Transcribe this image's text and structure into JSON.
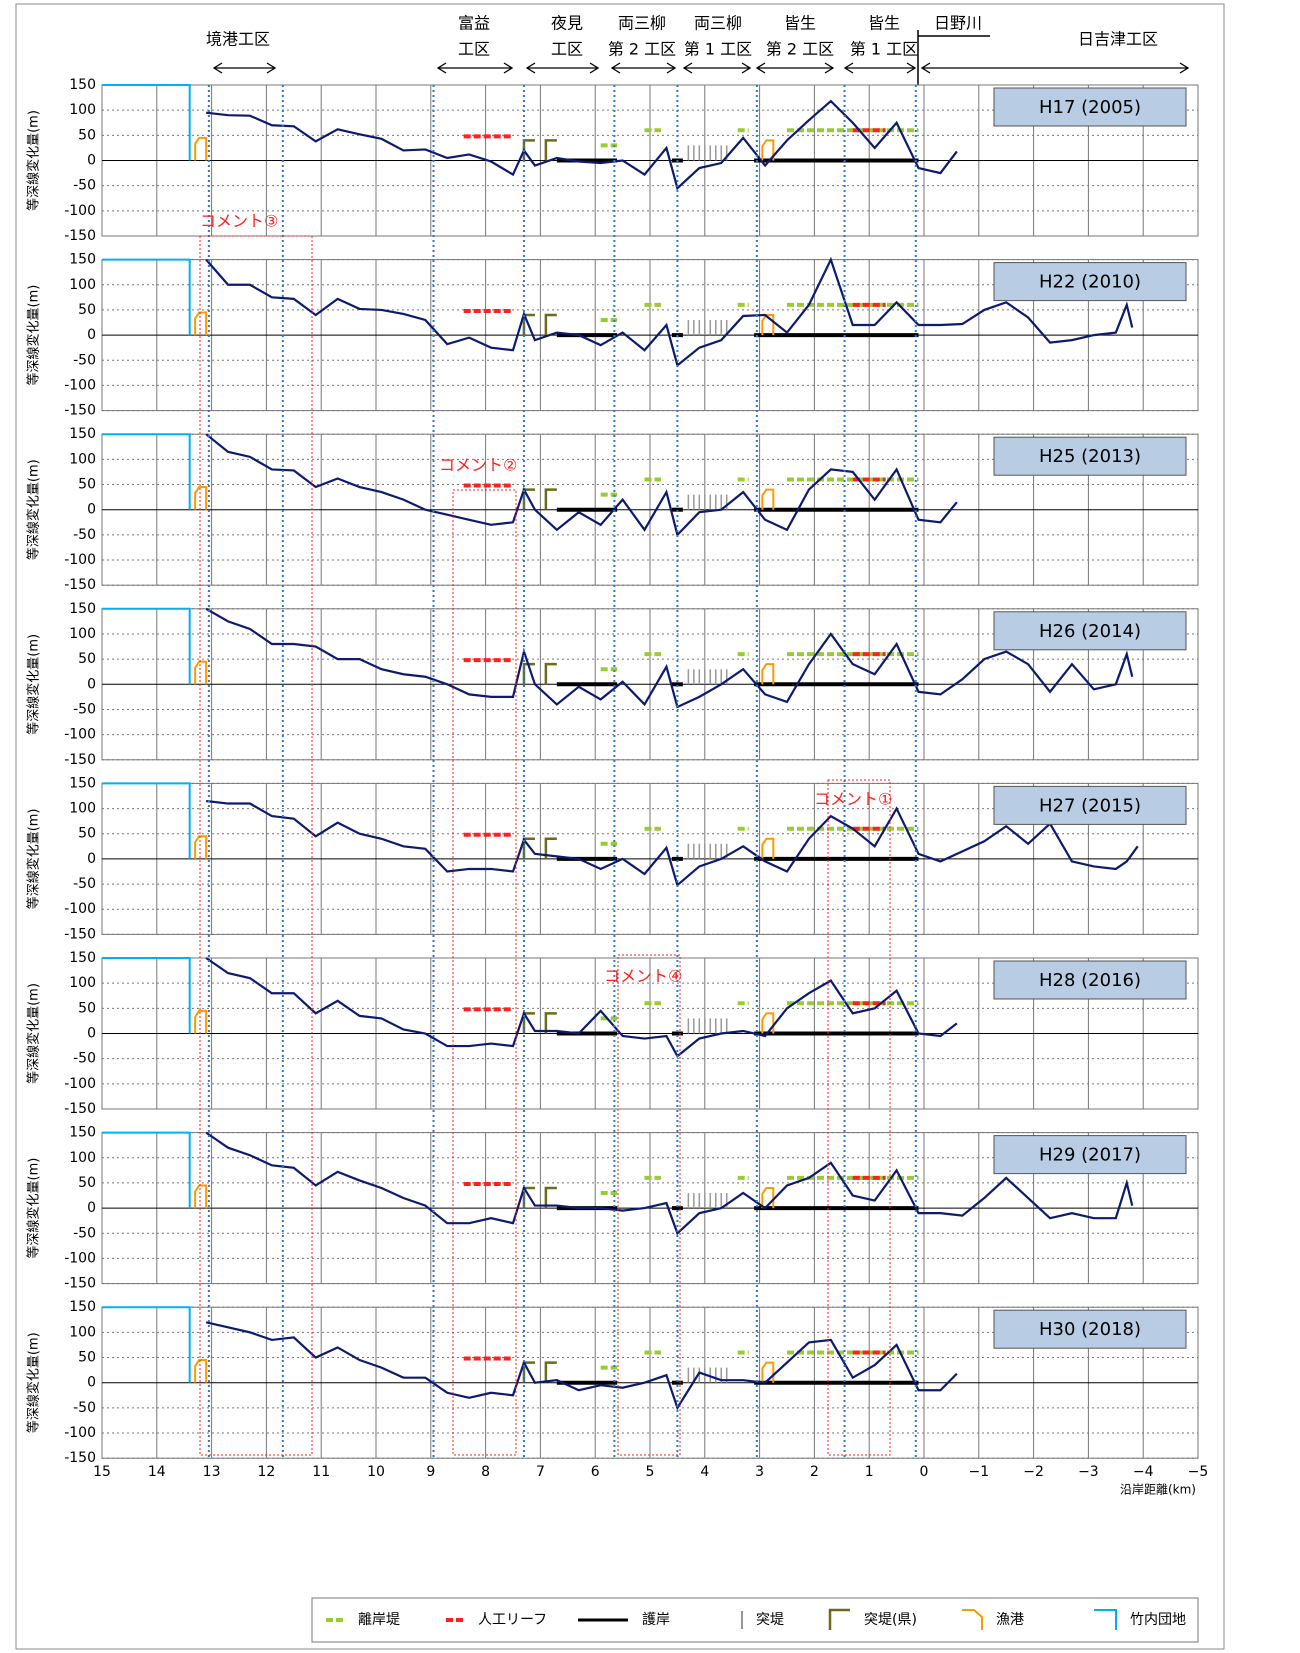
{
  "sections": [
    [
      "境港工区"
    ],
    [
      "富益",
      "工区"
    ],
    [
      "夜見",
      "工区"
    ],
    [
      "両三柳",
      "第 2 工区"
    ],
    [
      "両三柳",
      "第 1 工区"
    ],
    [
      "皆生",
      "第 2 工区"
    ],
    [
      "皆生",
      "第 1 工区"
    ],
    [
      "日野川"
    ],
    [
      "日吉津工区"
    ]
  ],
  "comments": [
    "コメント③",
    "コメント②",
    "コメント①",
    "コメント④"
  ],
  "x_label": "沿岸距離(km)",
  "section_boundaries": [
    13.05,
    11.7,
    8.95,
    7.3,
    5.65,
    4.5,
    3.05,
    1.45,
    0.15
  ],
  "legend": [
    {
      "name": "離岸堤",
      "color": "#99cc33",
      "shape": "dash",
      "items": [
        {
          "x": [
            5.9,
            5.6
          ],
          "y": 30
        },
        {
          "x": [
            5.1,
            4.8
          ],
          "y": 60
        },
        {
          "x": [
            3.4,
            3.2
          ],
          "y": 60
        },
        {
          "x": [
            2.5,
            0.1
          ],
          "y": 60
        }
      ]
    },
    {
      "name": "人工リーフ",
      "color": "#ff2020",
      "shape": "dash",
      "items": [
        {
          "x": [
            8.4,
            7.5
          ],
          "y": 48
        },
        {
          "x": [
            1.3,
            0.7
          ],
          "y": 60
        }
      ]
    },
    {
      "name": "護岸",
      "color": "#000000",
      "shape": "line",
      "items": [
        {
          "x": [
            6.7,
            5.6
          ],
          "y": 0
        },
        {
          "x": [
            4.6,
            4.4
          ],
          "y": 0
        },
        {
          "x": [
            3.1,
            0.1
          ],
          "y": 0
        }
      ]
    },
    {
      "name": "突堤",
      "color": "#999999",
      "shape": "ticks",
      "items": [
        {
          "x": [
            4.3,
            4.2,
            4.1,
            4.0,
            3.9,
            3.8,
            3.7,
            3.6
          ],
          "y": 30
        }
      ]
    },
    {
      "name": "突堤(県)",
      "color": "#6b6b1a",
      "shape": "bracket",
      "items": [
        {
          "x": [
            7.3,
            7.1
          ],
          "y": 40
        },
        {
          "x": [
            6.9,
            6.7
          ],
          "y": 40
        }
      ]
    },
    {
      "name": "漁港",
      "color": "#ff9900",
      "shape": "hook",
      "items": [
        {
          "x": [
            13.3,
            13.1
          ],
          "y": 45
        },
        {
          "x": [
            2.95,
            2.75
          ],
          "y": 40
        }
      ]
    },
    {
      "name": "竹内団地",
      "color": "#00b0f0",
      "shape": "frame",
      "items": [
        {
          "x": [
            15,
            13.4
          ],
          "y": 150
        }
      ]
    }
  ],
  "chart_data": [
    {
      "type": "line",
      "title": "H17 (2005)",
      "y_label": "等深線変化量(m)",
      "color": "#0d1a6e",
      "xlim": [
        15,
        -5
      ],
      "ylim": [
        -150,
        150
      ],
      "yticks": [
        150,
        100,
        50,
        0,
        -50,
        -100,
        -150
      ],
      "x": [
        13.1,
        12.7,
        12.3,
        11.9,
        11.5,
        11.1,
        10.7,
        10.3,
        9.9,
        9.5,
        9.1,
        8.7,
        8.3,
        7.9,
        7.5,
        7.3,
        7.1,
        6.7,
        6.3,
        5.9,
        5.5,
        5.1,
        4.7,
        4.5,
        4.1,
        3.7,
        3.3,
        2.9,
        2.5,
        2.1,
        1.7,
        1.3,
        0.9,
        0.5,
        0.1,
        -0.3,
        -0.6
      ],
      "values": [
        95,
        90,
        89,
        70,
        68,
        38,
        62,
        52,
        43,
        20,
        22,
        5,
        12,
        -2,
        -28,
        20,
        -10,
        5,
        -2,
        -5,
        0,
        -28,
        25,
        -55,
        -15,
        -5,
        45,
        -10,
        40,
        80,
        118,
        75,
        25,
        75,
        -15,
        -25,
        18
      ]
    },
    {
      "type": "line",
      "title": "H22 (2010)",
      "y_label": "等深線変化量(m)",
      "color": "#0d1a6e",
      "xlim": [
        15,
        -5
      ],
      "ylim": [
        -150,
        150
      ],
      "yticks": [
        150,
        100,
        50,
        0,
        -50,
        -100,
        -150
      ],
      "x": [
        13.1,
        12.7,
        12.3,
        11.9,
        11.5,
        11.1,
        10.7,
        10.3,
        9.9,
        9.5,
        9.1,
        8.7,
        8.3,
        7.9,
        7.5,
        7.3,
        7.1,
        6.7,
        6.3,
        5.9,
        5.5,
        5.1,
        4.7,
        4.5,
        4.1,
        3.7,
        3.3,
        2.9,
        2.5,
        2.1,
        1.7,
        1.3,
        0.9,
        0.5,
        0.1,
        -0.3,
        -0.7,
        -1.1,
        -1.5,
        -1.9,
        -2.3,
        -2.7,
        -3.1,
        -3.5,
        -3.7,
        -3.8
      ],
      "values": [
        150,
        100,
        100,
        75,
        72,
        40,
        72,
        52,
        50,
        42,
        30,
        -18,
        -5,
        -25,
        -30,
        42,
        -10,
        5,
        0,
        -20,
        5,
        -30,
        20,
        -60,
        -25,
        -10,
        38,
        40,
        5,
        60,
        150,
        20,
        20,
        65,
        20,
        20,
        22,
        50,
        65,
        35,
        -15,
        -10,
        0,
        5,
        60,
        15
      ]
    },
    {
      "type": "line",
      "title": "H25 (2013)",
      "y_label": "等深線変化量(m)",
      "color": "#0d1a6e",
      "xlim": [
        15,
        -5
      ],
      "ylim": [
        -150,
        150
      ],
      "yticks": [
        150,
        100,
        50,
        0,
        -50,
        -100,
        -150
      ],
      "x": [
        13.1,
        12.7,
        12.3,
        11.9,
        11.5,
        11.1,
        10.7,
        10.3,
        9.9,
        9.5,
        9.1,
        8.7,
        8.3,
        7.9,
        7.5,
        7.3,
        7.1,
        6.7,
        6.3,
        5.9,
        5.5,
        5.1,
        4.7,
        4.5,
        4.1,
        3.7,
        3.3,
        2.9,
        2.5,
        2.1,
        1.7,
        1.3,
        0.9,
        0.5,
        0.1,
        -0.3,
        -0.6
      ],
      "values": [
        150,
        115,
        105,
        80,
        78,
        45,
        62,
        45,
        35,
        20,
        0,
        -10,
        -20,
        -30,
        -25,
        40,
        0,
        -40,
        -5,
        -30,
        20,
        -40,
        35,
        -50,
        -5,
        0,
        35,
        -20,
        -40,
        40,
        80,
        75,
        20,
        80,
        -20,
        -25,
        15
      ]
    },
    {
      "type": "line",
      "title": "H26 (2014)",
      "y_label": "等深線変化量(m)",
      "color": "#0d1a6e",
      "xlim": [
        15,
        -5
      ],
      "ylim": [
        -150,
        150
      ],
      "yticks": [
        150,
        100,
        50,
        0,
        -50,
        -100,
        -150
      ],
      "x": [
        13.1,
        12.7,
        12.3,
        11.9,
        11.5,
        11.1,
        10.7,
        10.3,
        9.9,
        9.5,
        9.1,
        8.7,
        8.3,
        7.9,
        7.5,
        7.3,
        7.1,
        6.7,
        6.3,
        5.9,
        5.5,
        5.1,
        4.7,
        4.5,
        4.1,
        3.7,
        3.3,
        2.9,
        2.5,
        2.1,
        1.7,
        1.3,
        0.9,
        0.5,
        0.1,
        -0.3,
        -0.7,
        -1.1,
        -1.5,
        -1.9,
        -2.3,
        -2.7,
        -3.1,
        -3.5,
        -3.7,
        -3.8
      ],
      "values": [
        150,
        125,
        110,
        80,
        80,
        75,
        50,
        50,
        30,
        20,
        15,
        0,
        -20,
        -25,
        -25,
        65,
        0,
        -40,
        -5,
        -30,
        5,
        -40,
        35,
        -45,
        -25,
        0,
        30,
        -20,
        -35,
        40,
        100,
        40,
        20,
        80,
        -15,
        -20,
        10,
        50,
        65,
        40,
        -15,
        40,
        -10,
        0,
        60,
        15
      ]
    },
    {
      "type": "line",
      "title": "H27 (2015)",
      "y_label": "等深線変化量(m)",
      "color": "#0d1a6e",
      "xlim": [
        15,
        -5
      ],
      "ylim": [
        -150,
        150
      ],
      "yticks": [
        150,
        100,
        50,
        0,
        -50,
        -100,
        -150
      ],
      "x": [
        13.1,
        12.7,
        12.3,
        11.9,
        11.5,
        11.1,
        10.7,
        10.3,
        9.9,
        9.5,
        9.1,
        8.7,
        8.3,
        7.9,
        7.5,
        7.3,
        7.1,
        6.7,
        6.3,
        5.9,
        5.5,
        5.1,
        4.7,
        4.5,
        4.1,
        3.7,
        3.3,
        2.9,
        2.5,
        2.1,
        1.7,
        1.3,
        0.9,
        0.5,
        0.1,
        -0.3,
        -0.7,
        -1.1,
        -1.5,
        -1.9,
        -2.3,
        -2.7,
        -3.1,
        -3.5,
        -3.7,
        -3.9
      ],
      "values": [
        115,
        110,
        110,
        85,
        80,
        45,
        72,
        50,
        40,
        25,
        20,
        -25,
        -20,
        -20,
        -25,
        38,
        10,
        5,
        0,
        -20,
        0,
        -30,
        22,
        -52,
        -15,
        0,
        25,
        -5,
        -25,
        40,
        85,
        60,
        25,
        100,
        10,
        -5,
        15,
        35,
        65,
        30,
        70,
        -5,
        -15,
        -20,
        -5,
        25
      ]
    },
    {
      "type": "line",
      "title": "H28 (2016)",
      "y_label": "等深線変化量(m)",
      "color": "#0d1a6e",
      "xlim": [
        15,
        -5
      ],
      "ylim": [
        -150,
        150
      ],
      "yticks": [
        150,
        100,
        50,
        0,
        -50,
        -100,
        -150
      ],
      "x": [
        13.1,
        12.7,
        12.3,
        11.9,
        11.5,
        11.1,
        10.7,
        10.3,
        9.9,
        9.5,
        9.1,
        8.7,
        8.3,
        7.9,
        7.5,
        7.3,
        7.1,
        6.7,
        6.3,
        5.9,
        5.5,
        5.1,
        4.7,
        4.5,
        4.1,
        3.7,
        3.3,
        2.9,
        2.5,
        2.1,
        1.7,
        1.3,
        0.9,
        0.5,
        0.1,
        -0.3,
        -0.6
      ],
      "values": [
        150,
        120,
        110,
        80,
        80,
        40,
        65,
        35,
        30,
        8,
        0,
        -25,
        -25,
        -20,
        -25,
        40,
        5,
        5,
        0,
        45,
        -5,
        -10,
        -5,
        -45,
        -10,
        0,
        5,
        -5,
        50,
        80,
        105,
        40,
        50,
        85,
        0,
        -5,
        20
      ]
    },
    {
      "type": "line",
      "title": "H29 (2017)",
      "y_label": "等深線変化量(m)",
      "color": "#0d1a6e",
      "xlim": [
        15,
        -5
      ],
      "ylim": [
        -150,
        150
      ],
      "yticks": [
        150,
        100,
        50,
        0,
        -50,
        -100,
        -150
      ],
      "x": [
        13.1,
        12.7,
        12.3,
        11.9,
        11.5,
        11.1,
        10.7,
        10.3,
        9.9,
        9.5,
        9.1,
        8.7,
        8.3,
        7.9,
        7.5,
        7.3,
        7.1,
        6.7,
        6.3,
        5.9,
        5.5,
        5.1,
        4.7,
        4.5,
        4.1,
        3.7,
        3.3,
        2.9,
        2.5,
        2.1,
        1.7,
        1.3,
        0.9,
        0.5,
        0.1,
        -0.3,
        -0.7,
        -1.1,
        -1.5,
        -1.9,
        -2.3,
        -2.7,
        -3.1,
        -3.5,
        -3.7,
        -3.8
      ],
      "values": [
        150,
        120,
        105,
        85,
        80,
        45,
        72,
        55,
        40,
        20,
        5,
        -30,
        -30,
        -20,
        -30,
        40,
        5,
        5,
        0,
        0,
        -5,
        0,
        10,
        -50,
        -10,
        0,
        30,
        0,
        45,
        60,
        90,
        25,
        15,
        75,
        -10,
        -10,
        -15,
        20,
        60,
        20,
        -20,
        -10,
        -20,
        -20,
        50,
        5
      ]
    },
    {
      "type": "line",
      "title": "H30 (2018)",
      "y_label": "等深線変化量(m)",
      "color": "#0d1a6e",
      "xlim": [
        15,
        -5
      ],
      "ylim": [
        -150,
        150
      ],
      "yticks": [
        150,
        100,
        50,
        0,
        -50,
        -100,
        -150
      ],
      "xticks": [
        15,
        14,
        13,
        12,
        11,
        10,
        9,
        8,
        7,
        6,
        5,
        4,
        3,
        2,
        1,
        0,
        {
          "value": -1,
          "label": "−1"
        },
        {
          "value": -2,
          "label": "−2"
        },
        {
          "value": -3,
          "label": "−3"
        },
        {
          "value": -4,
          "label": "−4"
        },
        {
          "value": -5,
          "label": "−5"
        }
      ],
      "x": [
        13.1,
        12.7,
        12.3,
        11.9,
        11.5,
        11.1,
        10.7,
        10.3,
        9.9,
        9.5,
        9.1,
        8.7,
        8.3,
        7.9,
        7.5,
        7.3,
        7.1,
        6.7,
        6.3,
        5.9,
        5.5,
        5.1,
        4.7,
        4.5,
        4.1,
        3.7,
        3.3,
        2.9,
        2.5,
        2.1,
        1.7,
        1.3,
        0.9,
        0.5,
        0.1,
        -0.3,
        -0.6
      ],
      "values": [
        120,
        110,
        100,
        85,
        90,
        50,
        70,
        45,
        30,
        10,
        10,
        -20,
        -30,
        -20,
        -25,
        40,
        0,
        5,
        -15,
        -5,
        -10,
        0,
        15,
        -50,
        20,
        5,
        5,
        0,
        40,
        80,
        85,
        10,
        35,
        75,
        -15,
        -15,
        18
      ]
    }
  ]
}
